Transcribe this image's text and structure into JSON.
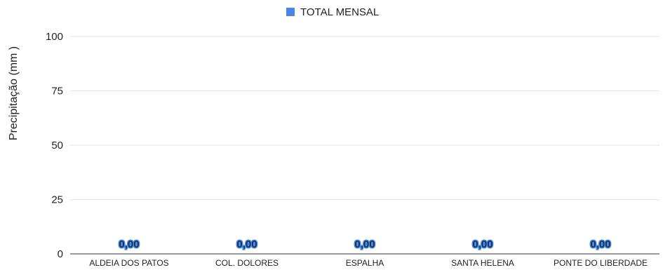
{
  "chart_data": {
    "type": "bar",
    "title": "",
    "xlabel": "",
    "ylabel": "Precipitação (mm )",
    "ylim": [
      0,
      100
    ],
    "yticks": [
      0,
      25,
      50,
      75,
      100
    ],
    "grid": true,
    "legend_position": "top-center",
    "categories": [
      "ALDEIA DOS PATOS",
      "COL. DOLORES",
      "ESPALHA",
      "SANTA HELENA",
      "PONTE DO LIBERDADE"
    ],
    "series": [
      {
        "name": "TOTAL MENSAL",
        "color": "#4a86e8",
        "values": [
          0,
          0,
          0,
          0,
          0
        ],
        "data_labels": [
          "0,00",
          "0,00",
          "0,00",
          "0,00",
          "0,00"
        ]
      }
    ]
  }
}
